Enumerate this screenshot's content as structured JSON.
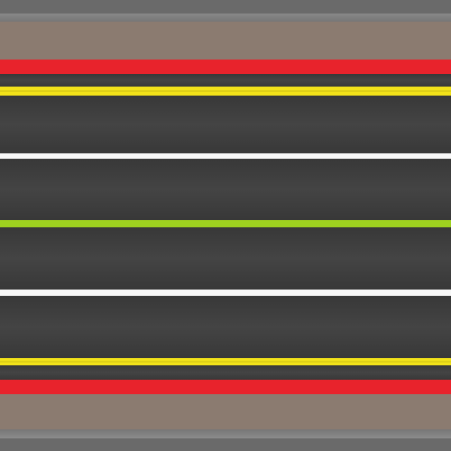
{
  "scene": {
    "type": "road-track-top-view",
    "colors": {
      "border": "#6a6a6a",
      "sidewalk": "#8b7b70",
      "curb": "#e8232c",
      "asphalt": "#3e3e3e",
      "yellow_line": "#f2e21a",
      "white_line": "#f7f7f7",
      "green_line": "#9ed11f"
    },
    "bands": [
      "border-top",
      "sidewalk-top",
      "curb-top",
      "yellow-line-top",
      "lane-1",
      "white-line-1",
      "lane-2",
      "green-line-center",
      "lane-3",
      "white-line-2",
      "lane-4",
      "yellow-line-bottom",
      "curb-bottom",
      "sidewalk-bottom",
      "border-bottom"
    ]
  }
}
